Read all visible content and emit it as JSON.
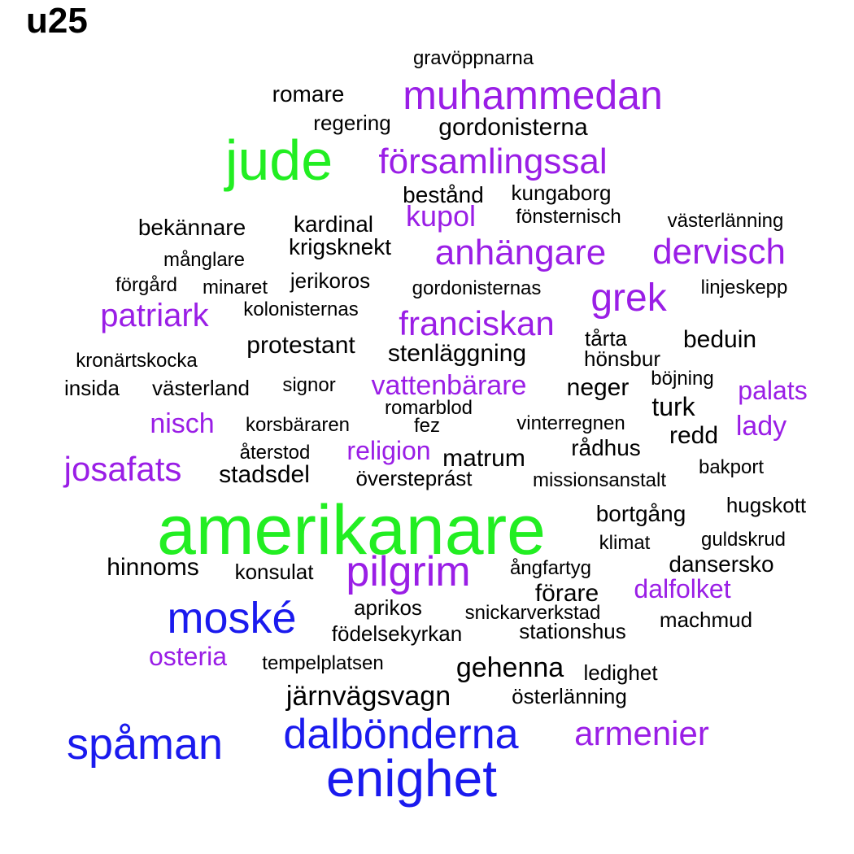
{
  "title": "u25",
  "colors": {
    "black": "#000000",
    "purple": "#9a1ee6",
    "green": "#22ee22",
    "blue": "#1a1aee"
  },
  "words": [
    {
      "text": "amerikanare",
      "color": "green"
    },
    {
      "text": "jude",
      "color": "green"
    },
    {
      "text": "enighet",
      "color": "blue"
    },
    {
      "text": "spåman",
      "color": "blue"
    },
    {
      "text": "dalbönderna",
      "color": "blue"
    },
    {
      "text": "moské",
      "color": "blue"
    },
    {
      "text": "muhammedan",
      "color": "purple"
    },
    {
      "text": "församlingssal",
      "color": "purple"
    },
    {
      "text": "anhängare",
      "color": "purple"
    },
    {
      "text": "dervisch",
      "color": "purple"
    },
    {
      "text": "grek",
      "color": "purple"
    },
    {
      "text": "pilgrim",
      "color": "purple"
    },
    {
      "text": "franciskan",
      "color": "purple"
    },
    {
      "text": "josafats",
      "color": "purple"
    },
    {
      "text": "armenier",
      "color": "purple"
    },
    {
      "text": "patriark",
      "color": "purple"
    },
    {
      "text": "kupol",
      "color": "purple"
    },
    {
      "text": "vattenbärare",
      "color": "purple"
    },
    {
      "text": "religion",
      "color": "purple"
    },
    {
      "text": "nisch",
      "color": "purple"
    },
    {
      "text": "palats",
      "color": "purple"
    },
    {
      "text": "lady",
      "color": "purple"
    },
    {
      "text": "dalfolket",
      "color": "purple"
    },
    {
      "text": "osteria",
      "color": "purple"
    },
    {
      "text": "gravöppnarna",
      "color": "black"
    },
    {
      "text": "romare",
      "color": "black"
    },
    {
      "text": "regering",
      "color": "black"
    },
    {
      "text": "gordonisterna",
      "color": "black"
    },
    {
      "text": "bestånd",
      "color": "black"
    },
    {
      "text": "kungaborg",
      "color": "black"
    },
    {
      "text": "bekännare",
      "color": "black"
    },
    {
      "text": "kardinal",
      "color": "black"
    },
    {
      "text": "fönsternisch",
      "color": "black"
    },
    {
      "text": "västerlänning",
      "color": "black"
    },
    {
      "text": "krigsknekt",
      "color": "black"
    },
    {
      "text": "månglare",
      "color": "black"
    },
    {
      "text": "förgård",
      "color": "black"
    },
    {
      "text": "minaret",
      "color": "black"
    },
    {
      "text": "jerikoros",
      "color": "black"
    },
    {
      "text": "gordonisternas",
      "color": "black"
    },
    {
      "text": "linjeskepp",
      "color": "black"
    },
    {
      "text": "kolonisternas",
      "color": "black"
    },
    {
      "text": "tårta",
      "color": "black"
    },
    {
      "text": "beduin",
      "color": "black"
    },
    {
      "text": "protestant",
      "color": "black"
    },
    {
      "text": "stenläggning",
      "color": "black"
    },
    {
      "text": "hönsbur",
      "color": "black"
    },
    {
      "text": "kronärtskocka",
      "color": "black"
    },
    {
      "text": "böjning",
      "color": "black"
    },
    {
      "text": "insida",
      "color": "black"
    },
    {
      "text": "västerland",
      "color": "black"
    },
    {
      "text": "signor",
      "color": "black"
    },
    {
      "text": "neger",
      "color": "black"
    },
    {
      "text": "romarblod",
      "color": "black"
    },
    {
      "text": "turk",
      "color": "black"
    },
    {
      "text": "korsbäraren",
      "color": "black"
    },
    {
      "text": "fez",
      "color": "black"
    },
    {
      "text": "vinterregnen",
      "color": "black"
    },
    {
      "text": "redd",
      "color": "black"
    },
    {
      "text": "återstod",
      "color": "black"
    },
    {
      "text": "matrum",
      "color": "black"
    },
    {
      "text": "rådhus",
      "color": "black"
    },
    {
      "text": "stadsdel",
      "color": "black"
    },
    {
      "text": "översteprást",
      "color": "black"
    },
    {
      "text": "missionsanstalt",
      "color": "black"
    },
    {
      "text": "bakport",
      "color": "black"
    },
    {
      "text": "hugskott",
      "color": "black"
    },
    {
      "text": "bortgång",
      "color": "black"
    },
    {
      "text": "klimat",
      "color": "black"
    },
    {
      "text": "guldskrud",
      "color": "black"
    },
    {
      "text": "hinnoms",
      "color": "black"
    },
    {
      "text": "konsulat",
      "color": "black"
    },
    {
      "text": "ångfartyg",
      "color": "black"
    },
    {
      "text": "dansersko",
      "color": "black"
    },
    {
      "text": "förare",
      "color": "black"
    },
    {
      "text": "aprikos",
      "color": "black"
    },
    {
      "text": "snickarverkstad",
      "color": "black"
    },
    {
      "text": "machmud",
      "color": "black"
    },
    {
      "text": "födelsekyrkan",
      "color": "black"
    },
    {
      "text": "stationshus",
      "color": "black"
    },
    {
      "text": "tempelplatsen",
      "color": "black"
    },
    {
      "text": "gehenna",
      "color": "black"
    },
    {
      "text": "ledighet",
      "color": "black"
    },
    {
      "text": "järnvägsvagn",
      "color": "black"
    },
    {
      "text": "österlänning",
      "color": "black"
    }
  ]
}
